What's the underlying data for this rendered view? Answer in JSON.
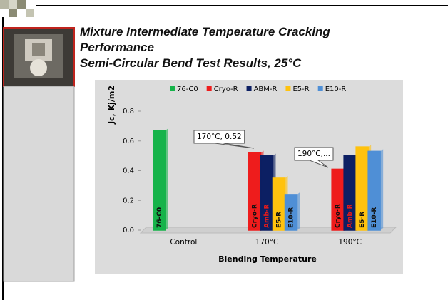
{
  "chart_data": {
    "type": "bar",
    "title": "Mixture Intermediate Temperature Cracking Performance",
    "subtitle": "Semi-Circular Bend Test Results, 25°C",
    "x_label": "Blending Temperature",
    "y_label": "Jc, Kj/m2",
    "categories": [
      "Control",
      "170°C",
      "190°C"
    ],
    "series": [
      {
        "name": "76-C0",
        "color": "#16b34a",
        "values": [
          0.67,
          0,
          0
        ],
        "point_labels": [
          "76-C0",
          null,
          null
        ]
      },
      {
        "name": "Cryo-R",
        "color": "#ee1c1c",
        "values": [
          0,
          0.52,
          0.41
        ],
        "point_labels": [
          null,
          "Cryo-R",
          "Cryo-R"
        ]
      },
      {
        "name": "ABM-R",
        "color": "#0c1f63",
        "values": [
          0,
          0.5,
          0.5
        ],
        "point_labels": [
          null,
          "Amb-R",
          "Amb-R"
        ]
      },
      {
        "name": "E5-R",
        "color": "#ffc20e",
        "values": [
          0,
          0.35,
          0.56
        ],
        "point_labels": [
          null,
          "E5-R",
          "E5-R"
        ]
      },
      {
        "name": "E10-R",
        "color": "#4f8fd6",
        "values": [
          0,
          0.24,
          0.53
        ],
        "point_labels": [
          null,
          "E10-R",
          "E10-R"
        ]
      }
    ],
    "annotations": [
      "170°C, 0.52",
      "190°C,..."
    ],
    "ylim": [
      0,
      0.8
    ],
    "yticks": [
      {
        "value": 0,
        "label": "0.0"
      },
      0.2,
      0.4,
      0.6,
      0.8
    ],
    "legend": "top"
  }
}
